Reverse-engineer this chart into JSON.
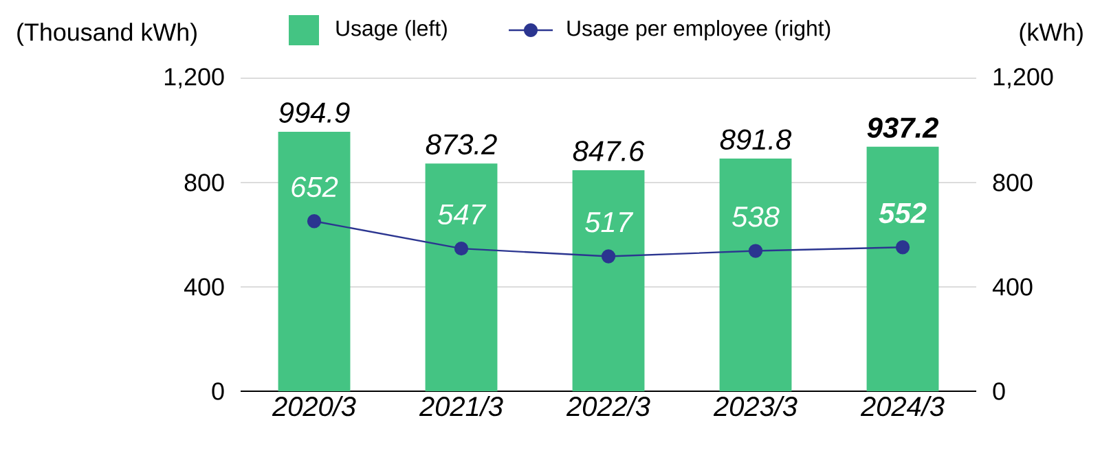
{
  "chart_data": {
    "type": "bar",
    "categories": [
      "2020/3",
      "2021/3",
      "2022/3",
      "2023/3",
      "2024/3"
    ],
    "ylabel": "(Thousand kWh)",
    "y2label": "(kWh)",
    "ylim": [
      0,
      1200
    ],
    "yticks": [
      0,
      400,
      800,
      {
        "value": 1200,
        "label": "1,200"
      }
    ],
    "y2lim": [
      0,
      1200
    ],
    "y2ticks": [
      0,
      400,
      800,
      {
        "value": 1200,
        "label": "1,200"
      }
    ],
    "grid": "y",
    "legend": "top",
    "series": [
      {
        "name": "Usage (left)",
        "color": "#44c483",
        "values": [
          994.9,
          873.2,
          847.6,
          891.8,
          937.2
        ],
        "value_labels": [
          "994.9",
          "873.2",
          "847.6",
          "891.8",
          "**937.2**"
        ]
      },
      {
        "name": "Usage per employee (right)",
        "type": "line",
        "axis": "y2",
        "color": "#2b3590",
        "marker": "circle",
        "line_style": "solid",
        "values": [
          652,
          547,
          517,
          538,
          552
        ],
        "value_labels": [
          "652",
          "547",
          "517",
          "538",
          "**552**"
        ]
      }
    ]
  }
}
